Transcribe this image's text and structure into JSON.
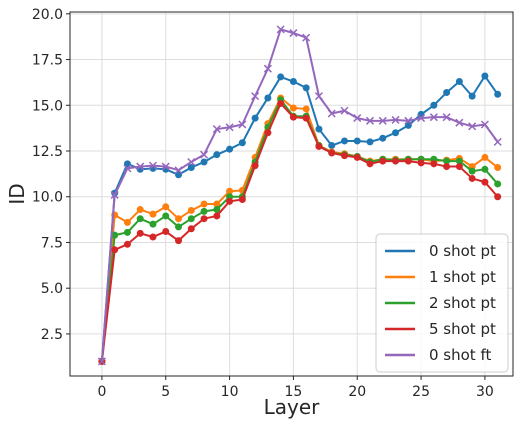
{
  "chart_data": {
    "type": "line",
    "title": "",
    "xlabel": "Layer",
    "ylabel": "ID",
    "xlim": [
      -2.5,
      32.2
    ],
    "ylim": [
      0.2,
      20.1
    ],
    "xticks": [
      0,
      5,
      10,
      15,
      20,
      25,
      30
    ],
    "yticks": [
      2.5,
      5.0,
      7.5,
      10.0,
      12.5,
      15.0,
      17.5,
      20.0
    ],
    "xtick_labels": [
      "0",
      "5",
      "10",
      "15",
      "20",
      "25",
      "30"
    ],
    "ytick_labels": [
      "2.5",
      "5.0",
      "7.5",
      "10.0",
      "12.5",
      "15.0",
      "17.5",
      "20.0"
    ],
    "grid": true,
    "legend_position": "bottom-right",
    "x": [
      0,
      1,
      2,
      3,
      4,
      5,
      6,
      7,
      8,
      9,
      10,
      11,
      12,
      13,
      14,
      15,
      16,
      17,
      18,
      19,
      20,
      21,
      22,
      23,
      24,
      25,
      26,
      27,
      28,
      29,
      30,
      31
    ],
    "series": [
      {
        "name": "0 shot pt",
        "color": "#1f77b4",
        "marker": "circle",
        "values": [
          1.0,
          10.2,
          11.8,
          11.5,
          11.55,
          11.5,
          11.2,
          11.6,
          11.9,
          12.3,
          12.6,
          12.95,
          14.3,
          15.4,
          16.55,
          16.3,
          15.95,
          13.7,
          12.8,
          13.05,
          13.05,
          13.0,
          13.2,
          13.5,
          13.9,
          14.5,
          15.0,
          15.7,
          16.3,
          15.5,
          16.6,
          15.6
        ]
      },
      {
        "name": "1 shot pt",
        "color": "#ff7f0e",
        "marker": "circle",
        "values": [
          1.0,
          9.0,
          8.6,
          9.3,
          9.05,
          9.45,
          8.8,
          9.25,
          9.6,
          9.6,
          10.3,
          10.35,
          12.15,
          14.0,
          15.4,
          14.85,
          14.8,
          12.8,
          12.45,
          12.35,
          12.2,
          11.95,
          12.05,
          12.05,
          12.05,
          12.05,
          11.95,
          12.0,
          12.1,
          11.65,
          12.15,
          11.6
        ]
      },
      {
        "name": "2 shot pt",
        "color": "#2ca02c",
        "marker": "circle",
        "values": [
          1.0,
          7.9,
          8.05,
          8.8,
          8.5,
          8.95,
          8.35,
          8.8,
          9.2,
          9.3,
          10.0,
          10.0,
          11.9,
          13.8,
          15.3,
          14.4,
          14.4,
          12.8,
          12.4,
          12.3,
          12.2,
          11.9,
          12.05,
          12.0,
          12.05,
          12.05,
          12.05,
          11.95,
          11.95,
          11.4,
          11.5,
          10.7
        ]
      },
      {
        "name": "5 shot pt",
        "color": "#d62728",
        "marker": "circle",
        "values": [
          1.0,
          7.1,
          7.4,
          8.0,
          7.8,
          8.1,
          7.6,
          8.25,
          8.8,
          8.95,
          9.75,
          9.85,
          11.7,
          13.5,
          15.1,
          14.35,
          14.3,
          12.75,
          12.4,
          12.25,
          12.15,
          11.8,
          11.95,
          11.95,
          11.95,
          11.85,
          11.8,
          11.65,
          11.65,
          11.0,
          10.8,
          10.0
        ]
      },
      {
        "name": "0 shot ft",
        "color": "#9467bd",
        "marker": "x",
        "values": [
          1.0,
          10.1,
          11.55,
          11.65,
          11.7,
          11.65,
          11.45,
          11.9,
          12.3,
          13.7,
          13.8,
          13.95,
          15.5,
          17.0,
          19.15,
          18.95,
          18.7,
          15.5,
          14.55,
          14.7,
          14.3,
          14.15,
          14.15,
          14.2,
          14.15,
          14.3,
          14.35,
          14.35,
          14.05,
          13.85,
          13.95,
          13.0
        ]
      }
    ]
  }
}
